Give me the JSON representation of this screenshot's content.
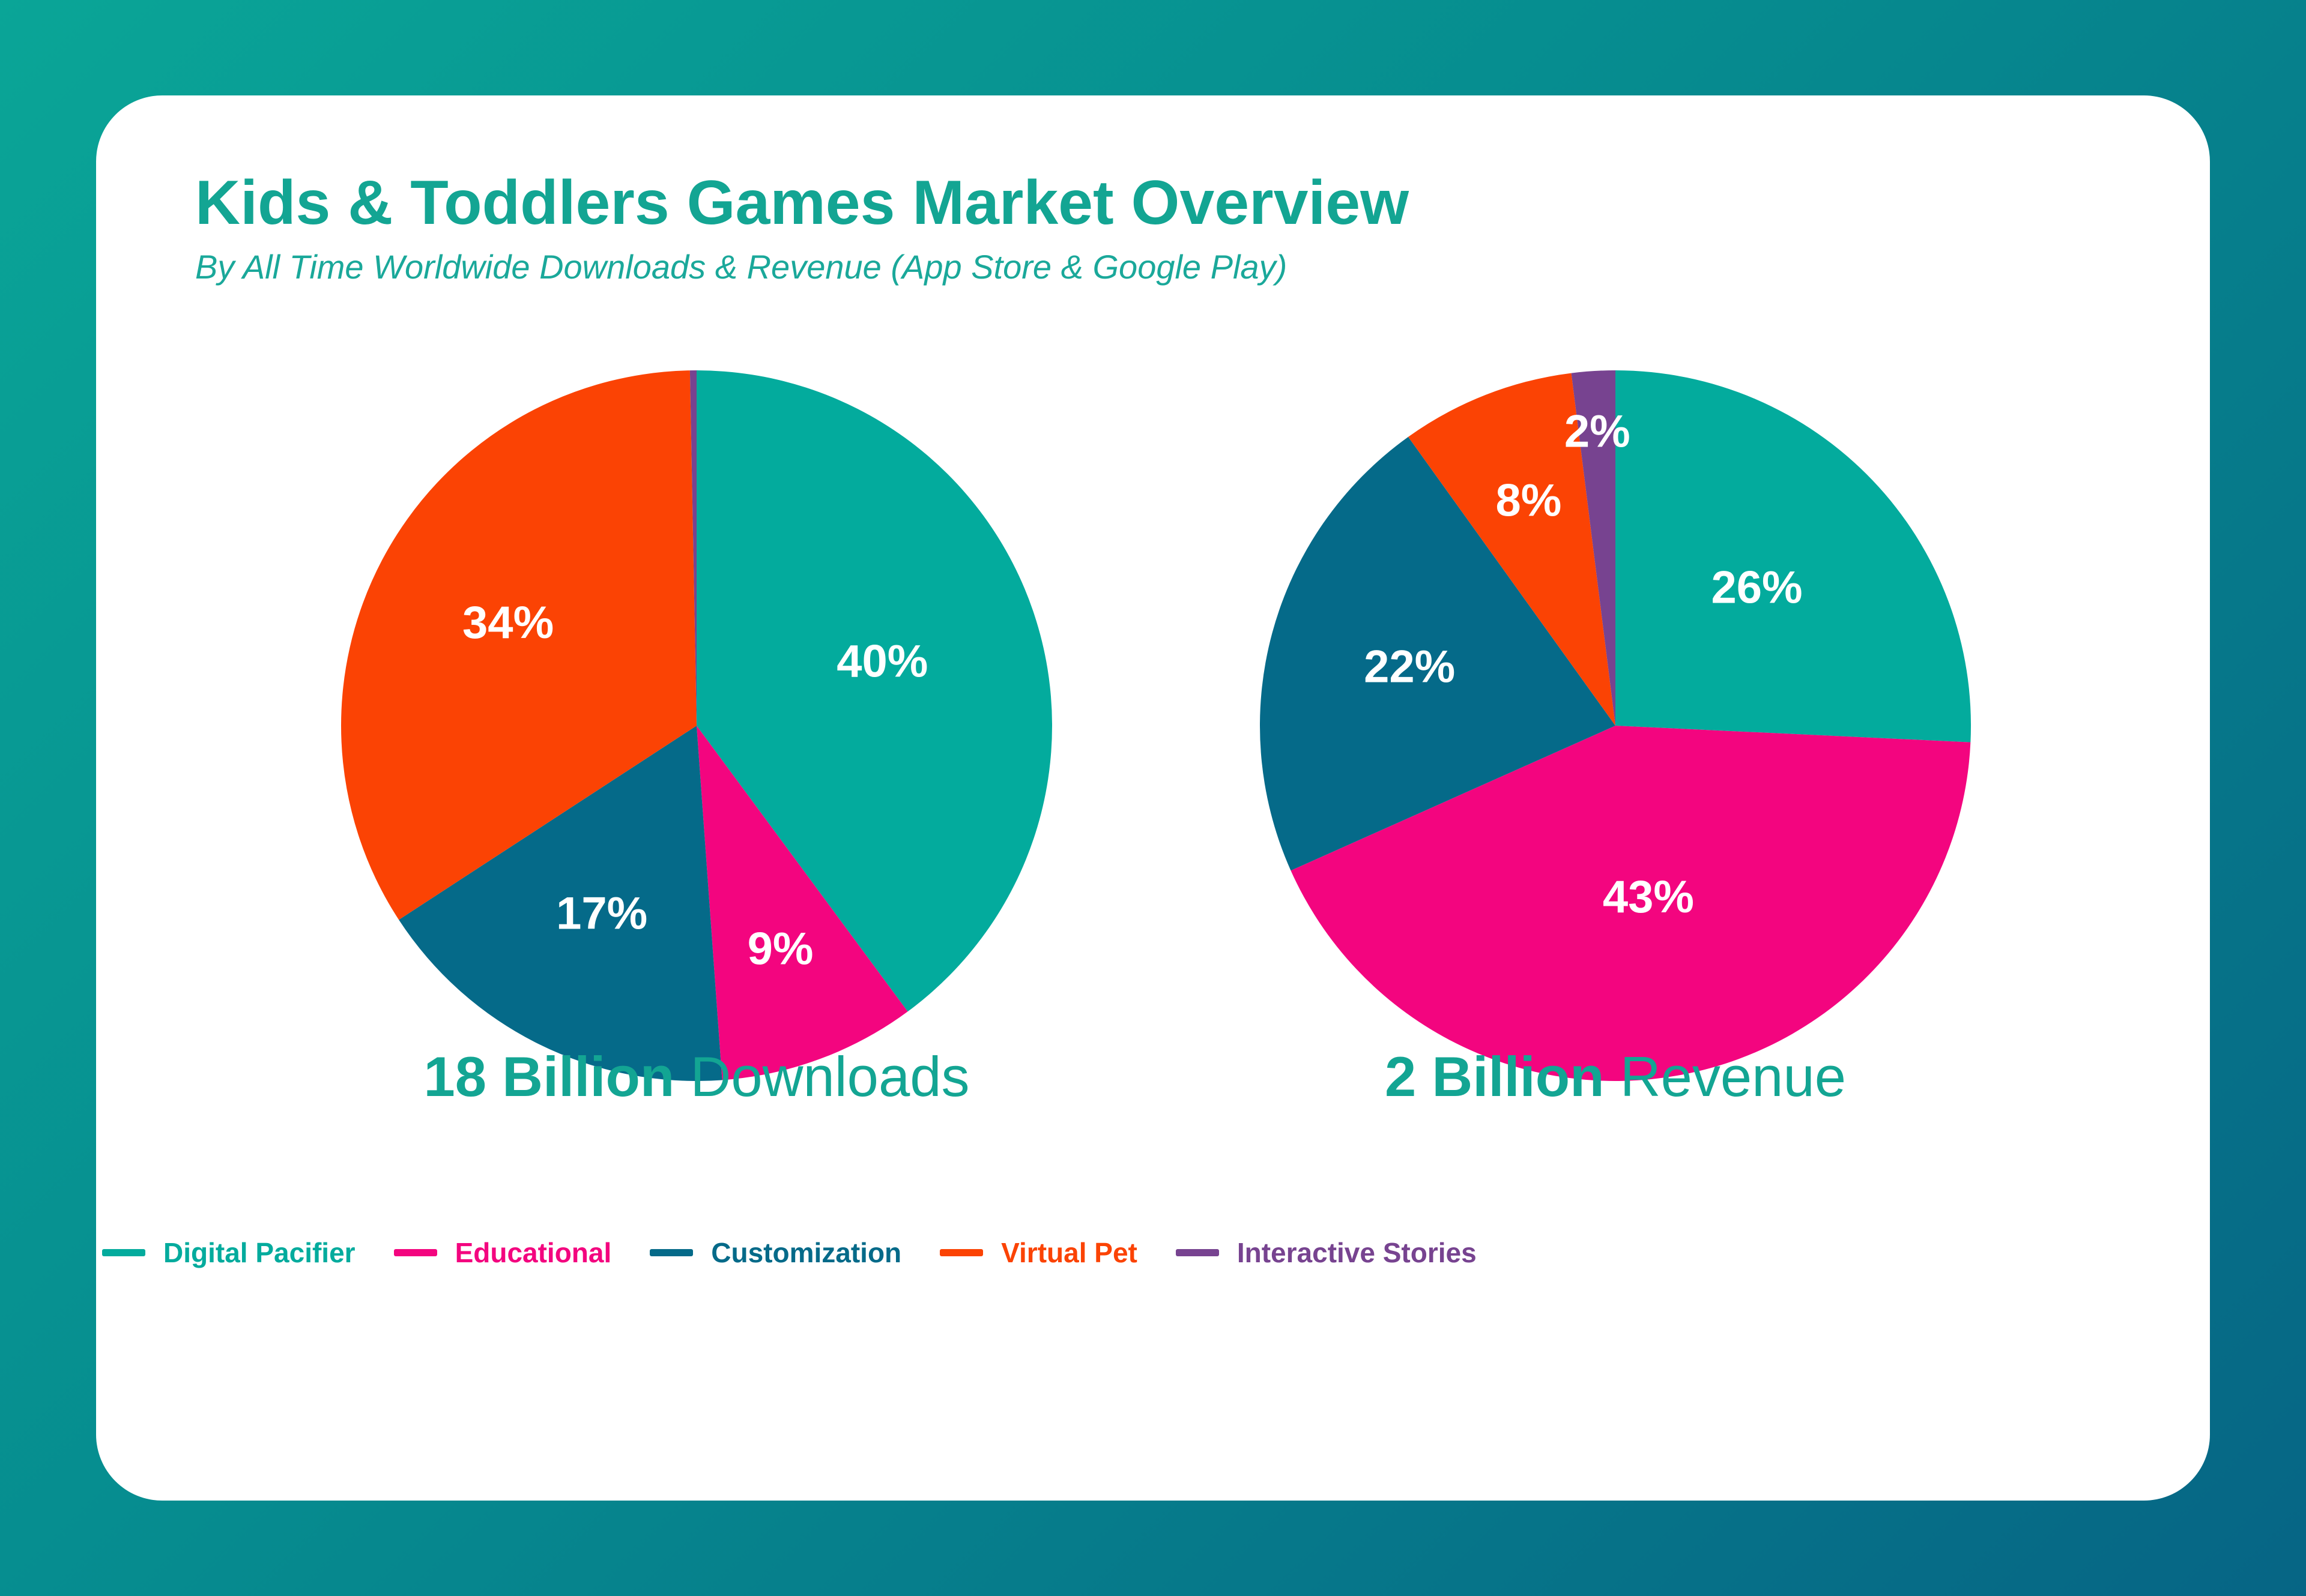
{
  "header": {
    "title": "Kids & Toddlers Games Market Overview",
    "subtitle": "By All Time Worldwide Downloads & Revenue (App Store & Google Play)"
  },
  "colors": {
    "Digital Pacifier": "#03ab9d",
    "Educational": "#f3057f",
    "Customization": "#056a89",
    "Virtual Pet": "#fb4304",
    "Interactive Stories": "#774390"
  },
  "captions": {
    "downloads": {
      "bold": "18 Billion",
      "text": "Downloads"
    },
    "revenue": {
      "bold": "2 Billion",
      "text": "Revenue"
    }
  },
  "legend": [
    {
      "label": "Digital Pacifier",
      "color": "#03ab9d"
    },
    {
      "label": "Educational",
      "color": "#f3057f"
    },
    {
      "label": "Customization",
      "color": "#056a89"
    },
    {
      "label": "Virtual Pet",
      "color": "#fb4304"
    },
    {
      "label": "Interactive Stories",
      "color": "#774390"
    }
  ],
  "chart_data": [
    {
      "type": "pie",
      "categories": [
        "Digital Pacifier",
        "Educational",
        "Customization",
        "Virtual Pet",
        "Interactive Stories"
      ],
      "values": [
        40,
        9,
        17,
        34,
        0.3
      ],
      "labels": [
        "40%",
        "9%",
        "17%",
        "34%",
        ""
      ],
      "title": ""
    },
    {
      "type": "pie",
      "categories": [
        "Digital Pacifier",
        "Educational",
        "Customization",
        "Virtual Pet",
        "Interactive Stories"
      ],
      "values": [
        26,
        43,
        22,
        8,
        2
      ],
      "labels": [
        "26%",
        "43%",
        "22%",
        "8%",
        "2%"
      ],
      "title": ""
    }
  ]
}
